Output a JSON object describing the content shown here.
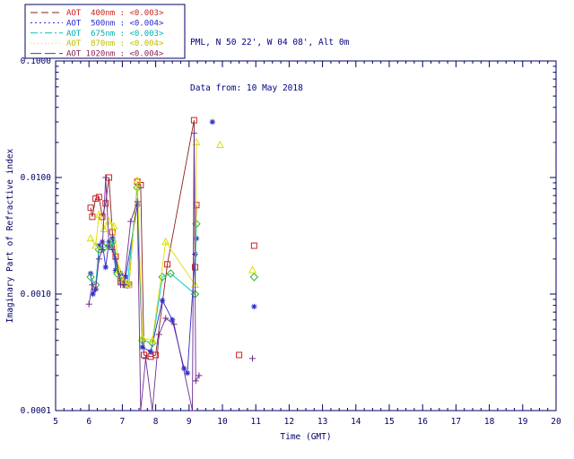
{
  "header": {
    "line1": "PML, N 50 22', W 04 08', Alt 0m",
    "line2": "Data from: 10 May 2018",
    "color": "#000080"
  },
  "chart_data": {
    "type": "scatter",
    "title": "",
    "xlabel": "Time (GMT)",
    "ylabel": "Imaginary Part of Refractive index",
    "xlim": [
      5,
      20
    ],
    "ylim": [
      0.0001,
      0.1
    ],
    "yscale": "log",
    "grid": false,
    "legend_position": "top-left",
    "axis_color": "#000066",
    "x_ticks": [
      5,
      6,
      7,
      8,
      9,
      10,
      11,
      12,
      13,
      14,
      15,
      16,
      17,
      18,
      19,
      20
    ],
    "y_ticks": [
      0.0001,
      0.001,
      0.01,
      0.1
    ],
    "y_tick_labels": [
      "0.0001",
      "0.0010",
      "0.0100",
      "0.1000"
    ],
    "series": [
      {
        "name": "AOT 400nm",
        "legend": "AOT  400nm : <0.003>",
        "line_color": "#8b2020",
        "marker": "square",
        "marker_color": "#cc2222",
        "text_color": "#cc2222",
        "dash": "8,4",
        "segments": [
          [
            [
              6.05,
              0.0055
            ],
            [
              6.1,
              0.0046
            ],
            [
              6.2,
              0.0066
            ],
            [
              6.3,
              0.0068
            ],
            [
              6.4,
              0.0046
            ],
            [
              6.5,
              0.006
            ],
            [
              6.6,
              0.01
            ],
            [
              6.7,
              0.0034
            ],
            [
              6.8,
              0.0021
            ],
            [
              6.95,
              0.0013
            ],
            [
              7.1,
              0.0012
            ],
            [
              7.2,
              0.0012
            ],
            [
              7.45,
              0.0092
            ],
            [
              7.55,
              0.0086
            ],
            [
              7.65,
              0.0003
            ],
            [
              7.85,
              0.00029
            ],
            [
              8.0,
              0.0003
            ],
            [
              8.35,
              0.0018
            ],
            [
              9.15,
              0.031
            ],
            [
              9.18,
              0.0017
            ],
            [
              9.22,
              0.0058
            ]
          ],
          [
            [
              10.5,
              0.0003
            ]
          ],
          [
            [
              10.95,
              0.0026
            ]
          ]
        ]
      },
      {
        "name": "AOT 500nm",
        "legend": "AOT  500nm : <0.004>",
        "line_color": "#2929cc",
        "marker": "asterisk",
        "marker_color": "#2929cc",
        "text_color": "#2929cc",
        "dash": "2,3",
        "segments": [
          [
            [
              6.05,
              0.0015
            ],
            [
              6.12,
              0.001
            ],
            [
              6.2,
              0.0011
            ],
            [
              6.3,
              0.0026
            ],
            [
              6.4,
              0.0028
            ],
            [
              6.5,
              0.0017
            ],
            [
              6.6,
              0.0028
            ],
            [
              6.7,
              0.003
            ],
            [
              6.8,
              0.0016
            ],
            [
              6.95,
              0.0015
            ],
            [
              7.1,
              0.0014
            ],
            [
              7.45,
              0.0058
            ],
            [
              7.6,
              0.00035
            ],
            [
              7.85,
              0.00032
            ],
            [
              8.2,
              0.00088
            ],
            [
              8.5,
              0.0006
            ],
            [
              8.85,
              0.00023
            ],
            [
              8.95,
              0.00021
            ],
            [
              9.18,
              0.0022
            ],
            [
              9.22,
              0.003
            ]
          ],
          [
            [
              9.7,
              0.03
            ]
          ],
          [
            [
              10.95,
              0.00078
            ]
          ]
        ]
      },
      {
        "name": "AOT 675nm",
        "legend": "AOT  675nm : <0.003>",
        "line_color": "#00c0c0",
        "marker": "diamond",
        "marker_color": "#2eb82e",
        "text_color": "#00b0b0",
        "dash": "8,3,2,3",
        "segments": [
          [
            [
              6.05,
              0.0014
            ],
            [
              6.2,
              0.0012
            ],
            [
              6.3,
              0.0024
            ],
            [
              6.45,
              0.0025
            ],
            [
              6.6,
              0.0026
            ],
            [
              6.7,
              0.0028
            ],
            [
              6.85,
              0.0015
            ],
            [
              7.0,
              0.0013
            ],
            [
              7.15,
              0.0012
            ],
            [
              7.45,
              0.0082
            ],
            [
              7.6,
              0.0004
            ],
            [
              7.9,
              0.00038
            ],
            [
              8.2,
              0.0014
            ],
            [
              8.45,
              0.0015
            ],
            [
              9.18,
              0.001
            ],
            [
              9.22,
              0.004
            ]
          ],
          [
            [
              10.95,
              0.0014
            ]
          ]
        ]
      },
      {
        "name": "AOT 870nm",
        "legend": "AOT  870nm : <0.004>",
        "line_color": "#dede00",
        "marker": "triangle",
        "marker_color": "#dede00",
        "text_color": "#bdbd00",
        "dash": "1,3",
        "segments": [
          [
            [
              6.05,
              0.003
            ],
            [
              6.2,
              0.0026
            ],
            [
              6.3,
              0.0048
            ],
            [
              6.45,
              0.0036
            ],
            [
              6.6,
              0.0042
            ],
            [
              6.75,
              0.0038
            ],
            [
              6.9,
              0.0016
            ],
            [
              7.05,
              0.0013
            ],
            [
              7.2,
              0.0012
            ],
            [
              7.45,
              0.0094
            ],
            [
              7.6,
              0.00042
            ],
            [
              7.9,
              0.0004
            ],
            [
              8.3,
              0.0028
            ],
            [
              9.18,
              0.0012
            ],
            [
              9.22,
              0.02
            ]
          ],
          [
            [
              9.93,
              0.019
            ]
          ],
          [
            [
              10.9,
              0.0016
            ]
          ]
        ]
      },
      {
        "name": "AOT 1020nm",
        "legend": "AOT 1020nm : <0.004>",
        "line_color": "#6a2d91",
        "marker": "plus",
        "marker_color": "#6a2d91",
        "text_color": "#8b2252",
        "dash": "12,4",
        "segments": [
          [
            [
              6.0,
              0.00082
            ],
            [
              6.1,
              0.0012
            ],
            [
              6.2,
              0.0011
            ],
            [
              6.3,
              0.002
            ],
            [
              6.4,
              0.0024
            ],
            [
              6.5,
              0.01
            ],
            [
              6.6,
              0.0026
            ],
            [
              6.7,
              0.0024
            ],
            [
              6.8,
              0.002
            ],
            [
              6.95,
              0.0012
            ],
            [
              7.05,
              0.0012
            ],
            [
              7.25,
              0.0042
            ],
            [
              7.45,
              0.0062
            ],
            [
              7.55,
              0.0001
            ],
            [
              7.7,
              0.00028
            ],
            [
              7.9,
              0.0001
            ],
            [
              8.1,
              0.00045
            ],
            [
              8.3,
              0.00062
            ],
            [
              8.55,
              0.00055
            ],
            [
              9.1,
              0.0001
            ],
            [
              9.15,
              0.024
            ],
            [
              9.2,
              0.00018
            ],
            [
              9.3,
              0.0002
            ]
          ],
          [
            [
              10.9,
              0.00028
            ]
          ]
        ]
      }
    ]
  }
}
